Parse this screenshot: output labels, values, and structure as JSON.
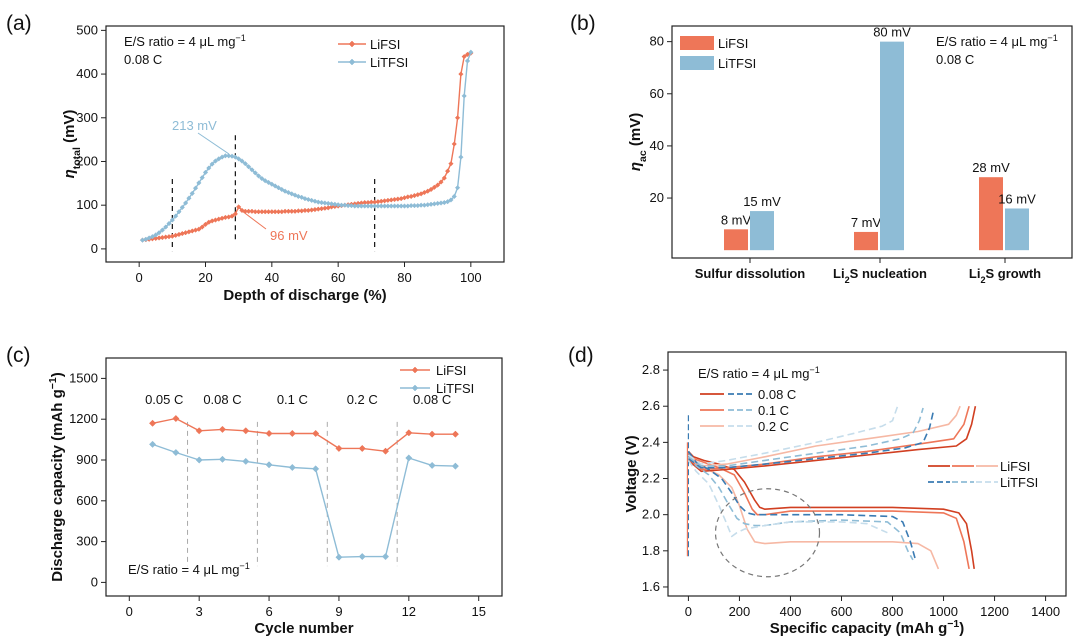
{
  "colors": {
    "lifsi": "#ee7658",
    "litfsi": "#8ebcd6",
    "lifsi_light": "#f6b8a4",
    "litfsi_light": "#c6ddeb",
    "lifsi_dark": "#d13f21",
    "litfsi_dark": "#3a7bb3"
  },
  "panels": {
    "a": "(a)",
    "b": "(b)",
    "c": "(c)",
    "d": "(d)"
  },
  "chart_data": [
    {
      "id": "a",
      "type": "line",
      "title": "",
      "xlabel": "Depth of discharge (%)",
      "ylabel_main": "η",
      "ylabel_sub": "total",
      "ylabel_unit": " (mV)",
      "xlim": [
        -10,
        110
      ],
      "ylim": [
        -30,
        510
      ],
      "xticks": [
        0,
        20,
        40,
        60,
        80,
        100
      ],
      "yticks": [
        0,
        100,
        200,
        300,
        400,
        500
      ],
      "annotations": {
        "ratio": "E/S ratio = 4 μL mg",
        "ratio_sup": "−1",
        "rate": "0.08 C",
        "peak_litfsi": "213 mV",
        "peak_lifsi": "96 mV"
      },
      "dividers_x": [
        10,
        29,
        71
      ],
      "series": [
        {
          "name": "LiFSI",
          "x": [
            1,
            2,
            3,
            4,
            5,
            6,
            7,
            8,
            9,
            10,
            11,
            12,
            13,
            14,
            15,
            16,
            17,
            18,
            19,
            20,
            21,
            22,
            23,
            24,
            25,
            26,
            27,
            28,
            29,
            30,
            31,
            32,
            33,
            34,
            35,
            36,
            37,
            38,
            39,
            40,
            41,
            42,
            43,
            44,
            45,
            46,
            47,
            48,
            49,
            50,
            51,
            52,
            53,
            54,
            55,
            56,
            57,
            58,
            59,
            60,
            61,
            62,
            63,
            64,
            65,
            66,
            67,
            68,
            69,
            70,
            71,
            72,
            73,
            74,
            75,
            76,
            77,
            78,
            79,
            80,
            81,
            82,
            83,
            84,
            85,
            86,
            87,
            88,
            89,
            90,
            91,
            92,
            93,
            94,
            95,
            96,
            97,
            98,
            99,
            100
          ],
          "y": [
            20,
            21,
            22,
            23,
            24,
            25,
            26,
            27,
            28,
            29,
            31,
            33,
            35,
            37,
            39,
            41,
            43,
            45,
            50,
            56,
            61,
            64,
            66,
            68,
            70,
            72,
            73,
            75,
            80,
            96,
            88,
            86,
            86,
            86,
            85,
            85,
            85,
            85,
            85,
            85,
            85,
            85,
            85,
            86,
            86,
            86,
            86,
            87,
            87,
            88,
            88,
            89,
            90,
            91,
            92,
            93,
            94,
            96,
            97,
            98,
            99,
            100,
            101,
            102,
            103,
            104,
            105,
            106,
            106,
            107,
            107,
            108,
            109,
            110,
            111,
            112,
            113,
            114,
            115,
            117,
            119,
            120,
            122,
            124,
            126,
            129,
            132,
            136,
            141,
            146,
            153,
            162,
            178,
            195,
            240,
            300,
            400,
            440,
            445,
            448
          ]
        },
        {
          "name": "LiTFSI",
          "x": [
            1,
            2,
            3,
            4,
            5,
            6,
            7,
            8,
            9,
            10,
            11,
            12,
            13,
            14,
            15,
            16,
            17,
            18,
            19,
            20,
            21,
            22,
            23,
            24,
            25,
            26,
            27,
            28,
            29,
            30,
            31,
            32,
            33,
            34,
            35,
            36,
            37,
            38,
            39,
            40,
            41,
            42,
            43,
            44,
            45,
            46,
            47,
            48,
            49,
            50,
            51,
            52,
            53,
            54,
            55,
            56,
            57,
            58,
            59,
            60,
            61,
            62,
            63,
            64,
            65,
            66,
            67,
            68,
            69,
            70,
            71,
            72,
            73,
            74,
            75,
            76,
            77,
            78,
            79,
            80,
            81,
            82,
            83,
            84,
            85,
            86,
            87,
            88,
            89,
            90,
            91,
            92,
            93,
            94,
            95,
            96,
            97,
            98,
            99,
            100
          ],
          "y": [
            20,
            22,
            25,
            28,
            32,
            37,
            43,
            50,
            58,
            66,
            75,
            85,
            95,
            105,
            116,
            127,
            139,
            151,
            163,
            175,
            185,
            194,
            201,
            206,
            210,
            213,
            213,
            212,
            210,
            206,
            201,
            195,
            188,
            181,
            174,
            167,
            161,
            156,
            152,
            148,
            144,
            140,
            136,
            132,
            129,
            126,
            123,
            120,
            118,
            115,
            113,
            111,
            109,
            107,
            106,
            105,
            104,
            103,
            102,
            101,
            100,
            100,
            99,
            99,
            98,
            98,
            98,
            98,
            98,
            98,
            98,
            98,
            98,
            98,
            98,
            98,
            98,
            98,
            98,
            98,
            98,
            99,
            99,
            99,
            100,
            100,
            101,
            102,
            103,
            104,
            105,
            106,
            108,
            112,
            120,
            140,
            210,
            350,
            430,
            450
          ]
        }
      ]
    },
    {
      "id": "b",
      "type": "bar",
      "ylabel_main": "η",
      "ylabel_sub": "ac",
      "ylabel_unit": " (mV)",
      "ylim": [
        -3,
        86
      ],
      "yticks": [
        20,
        40,
        60,
        80
      ],
      "categories": [
        {
          "pre": "Sulfur dissolution",
          "sub": "",
          "post": ""
        },
        {
          "pre": "Li",
          "sub": "2",
          "post": "S nucleation"
        },
        {
          "pre": "Li",
          "sub": "2",
          "post": "S growth"
        }
      ],
      "annotations": {
        "ratio": "E/S ratio = 4 μL mg",
        "ratio_sup": "−1",
        "rate": "0.08 C"
      },
      "series": [
        {
          "name": "LiFSI",
          "values": [
            8,
            7,
            28
          ],
          "labels": [
            "8 mV",
            "7 mV",
            "28 mV"
          ]
        },
        {
          "name": "LiTFSI",
          "values": [
            15,
            80,
            16
          ],
          "labels": [
            "15 mV",
            "80 mV",
            "16 mV"
          ]
        }
      ]
    },
    {
      "id": "c",
      "type": "line",
      "xlabel": "Cycle number",
      "ylabel": "Discharge capacity (mAh g",
      "ylabel_sup": "−1",
      "ylabel_end": ")",
      "xlim": [
        -1,
        16
      ],
      "ylim": [
        -100,
        1650
      ],
      "xticks": [
        0,
        3,
        6,
        9,
        12,
        15
      ],
      "yticks": [
        0,
        300,
        600,
        900,
        1200,
        1500
      ],
      "dividers_x": [
        2.5,
        5.5,
        8.5,
        11.5
      ],
      "segment_labels": [
        {
          "label": "0.05 C",
          "x": 1.5
        },
        {
          "label": "0.08 C",
          "x": 4
        },
        {
          "label": "0.1 C",
          "x": 7
        },
        {
          "label": "0.2 C",
          "x": 10
        },
        {
          "label": "0.08 C",
          "x": 13
        }
      ],
      "annotations": {
        "ratio": "E/S ratio = 4 μL mg",
        "ratio_sup": "−1"
      },
      "series": [
        {
          "name": "LiFSI",
          "x": [
            1,
            2,
            3,
            4,
            5,
            6,
            7,
            8,
            9,
            10,
            11,
            12,
            13,
            14
          ],
          "y": [
            1170,
            1205,
            1115,
            1125,
            1115,
            1095,
            1095,
            1095,
            985,
            985,
            965,
            1100,
            1090,
            1090
          ]
        },
        {
          "name": "LiTFSI",
          "x": [
            1,
            2,
            3,
            4,
            5,
            6,
            7,
            8,
            9,
            10,
            11,
            12,
            13,
            14
          ],
          "y": [
            1015,
            955,
            900,
            905,
            890,
            865,
            845,
            835,
            185,
            190,
            190,
            915,
            860,
            855
          ]
        }
      ]
    },
    {
      "id": "d",
      "type": "line",
      "xlabel": "Specific capacity (mAh g",
      "xlabel_sup": "−1",
      "xlabel_end": ")",
      "ylabel": "Voltage (V)",
      "xlim": [
        -80,
        1480
      ],
      "ylim": [
        1.55,
        2.9
      ],
      "xticks": [
        0,
        200,
        400,
        600,
        800,
        1000,
        1200,
        1400
      ],
      "yticks": [
        1.6,
        1.8,
        2.0,
        2.2,
        2.4,
        2.6,
        2.8
      ],
      "annotations": {
        "ratio": "E/S ratio = 4 μL mg",
        "ratio_sup": "−1"
      },
      "rate_legend": [
        "0.08 C",
        "0.1 C",
        "0.2 C"
      ],
      "electrolyte_legend": [
        "LiFSI",
        "LiTFSI"
      ],
      "highlight_circle": {
        "cx": 310,
        "cy": 1.9,
        "note": "dashed circle"
      },
      "series": [
        {
          "name": "LiFSI 0.08 C discharge",
          "style": "solid",
          "shade": "dark",
          "x": [
            0,
            20,
            60,
            120,
            180,
            220,
            260,
            280,
            300,
            400,
            600,
            800,
            1000,
            1060,
            1090,
            1110,
            1120
          ],
          "y": [
            2.35,
            2.32,
            2.3,
            2.28,
            2.25,
            2.18,
            2.08,
            2.04,
            2.03,
            2.04,
            2.04,
            2.04,
            2.03,
            2.01,
            1.95,
            1.8,
            1.7
          ]
        },
        {
          "name": "LiFSI 0.1 C discharge",
          "style": "solid",
          "shade": "mid",
          "x": [
            0,
            20,
            60,
            120,
            180,
            220,
            250,
            270,
            300,
            400,
            600,
            800,
            1000,
            1050,
            1080,
            1100
          ],
          "y": [
            2.34,
            2.31,
            2.29,
            2.26,
            2.22,
            2.12,
            2.03,
            2.0,
            2.0,
            2.02,
            2.02,
            2.02,
            2.01,
            1.98,
            1.85,
            1.7
          ]
        },
        {
          "name": "LiFSI 0.2 C discharge",
          "style": "solid",
          "shade": "light",
          "x": [
            0,
            20,
            60,
            120,
            170,
            200,
            230,
            260,
            300,
            400,
            600,
            800,
            900,
            950,
            980
          ],
          "y": [
            2.32,
            2.29,
            2.26,
            2.22,
            2.15,
            2.05,
            1.92,
            1.85,
            1.84,
            1.85,
            1.85,
            1.85,
            1.84,
            1.8,
            1.7
          ]
        },
        {
          "name": "LiFSI 0.08 C charge",
          "style": "solid",
          "shade": "dark",
          "x": [
            0,
            50,
            150,
            300,
            500,
            700,
            900,
            1050,
            1090,
            1110,
            1125
          ],
          "y": [
            2.3,
            2.24,
            2.25,
            2.27,
            2.3,
            2.33,
            2.36,
            2.38,
            2.42,
            2.5,
            2.6
          ]
        },
        {
          "name": "LiFSI 0.1 C charge",
          "style": "solid",
          "shade": "mid",
          "x": [
            0,
            50,
            150,
            300,
            500,
            700,
            900,
            1040,
            1080,
            1100
          ],
          "y": [
            2.31,
            2.25,
            2.26,
            2.28,
            2.32,
            2.35,
            2.39,
            2.42,
            2.5,
            2.6
          ]
        },
        {
          "name": "LiFSI 0.2 C charge",
          "style": "solid",
          "shade": "light",
          "x": [
            0,
            50,
            150,
            300,
            500,
            700,
            900,
            1020,
            1050,
            1065
          ],
          "y": [
            2.33,
            2.27,
            2.28,
            2.32,
            2.38,
            2.42,
            2.46,
            2.5,
            2.55,
            2.6
          ]
        },
        {
          "name": "LiTFSI 0.08 C discharge",
          "style": "dashed",
          "shade": "dark",
          "x": [
            0,
            30,
            80,
            130,
            170,
            200,
            230,
            260,
            300,
            400,
            600,
            800,
            840,
            870,
            890
          ],
          "y": [
            2.35,
            2.29,
            2.25,
            2.2,
            2.12,
            2.05,
            2.01,
            2.0,
            2.0,
            2.0,
            2.0,
            1.99,
            1.96,
            1.85,
            1.75
          ]
        },
        {
          "name": "LiTFSI 0.1 C discharge",
          "style": "dashed",
          "shade": "mid",
          "x": [
            0,
            30,
            80,
            120,
            160,
            190,
            220,
            260,
            300,
            400,
            600,
            780,
            830,
            860,
            880
          ],
          "y": [
            2.33,
            2.27,
            2.22,
            2.15,
            2.05,
            1.98,
            1.95,
            1.94,
            1.94,
            1.96,
            1.97,
            1.96,
            1.9,
            1.8,
            1.75
          ]
        },
        {
          "name": "LiTFSI 0.2 C discharge",
          "style": "dashed",
          "shade": "light",
          "x": [
            0,
            30,
            80,
            120,
            150,
            170,
            190,
            220,
            300,
            400,
            600,
            700,
            780
          ],
          "y": [
            2.3,
            2.24,
            2.17,
            2.05,
            1.95,
            1.88,
            1.9,
            1.92,
            1.94,
            1.96,
            1.96,
            1.95,
            1.9
          ]
        },
        {
          "name": "LiTFSI 0.08 C charge",
          "style": "dashed",
          "shade": "dark",
          "x": [
            0,
            50,
            150,
            300,
            500,
            700,
            850,
            920,
            945,
            960
          ],
          "y": [
            2.31,
            2.26,
            2.26,
            2.28,
            2.31,
            2.34,
            2.37,
            2.4,
            2.48,
            2.57
          ]
        },
        {
          "name": "LiTFSI 0.1 C charge",
          "style": "dashed",
          "shade": "mid",
          "x": [
            0,
            50,
            150,
            300,
            500,
            700,
            830,
            880,
            905,
            920
          ],
          "y": [
            2.32,
            2.27,
            2.27,
            2.3,
            2.34,
            2.38,
            2.42,
            2.45,
            2.52,
            2.59
          ]
        },
        {
          "name": "LiTFSI 0.2 C charge",
          "style": "dashed",
          "shade": "light",
          "x": [
            0,
            50,
            150,
            300,
            500,
            650,
            760,
            800,
            820
          ],
          "y": [
            2.33,
            2.28,
            2.3,
            2.34,
            2.4,
            2.45,
            2.49,
            2.52,
            2.6
          ]
        }
      ]
    }
  ]
}
